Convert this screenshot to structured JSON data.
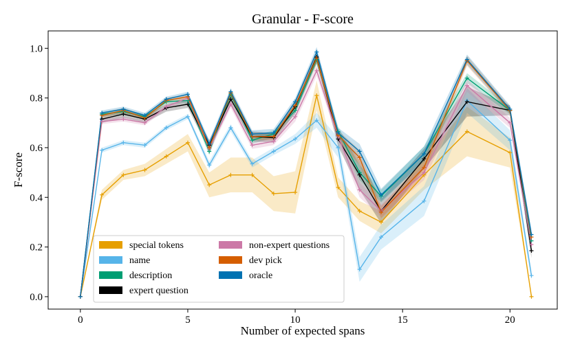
{
  "chart_data": {
    "type": "line",
    "title": "Granular - F-score",
    "xlabel": "Number of expected spans",
    "ylabel": "F-score",
    "xlim": [
      -1.5,
      22.2
    ],
    "ylim": [
      -0.05,
      1.07
    ],
    "xticks": [
      0,
      5,
      10,
      15,
      20
    ],
    "xtick_labels": [
      "0",
      "5",
      "10",
      "15",
      "20"
    ],
    "yticks": [
      0.0,
      0.2,
      0.4,
      0.6,
      0.8,
      1.0
    ],
    "ytick_labels": [
      "0.0",
      "0.2",
      "0.4",
      "0.6",
      "0.8",
      "1.0"
    ],
    "legend_position": "lower-left",
    "x": [
      0,
      1,
      2,
      3,
      4,
      5,
      6,
      7,
      8,
      9,
      10,
      11,
      12,
      13,
      14,
      16,
      18,
      20,
      21
    ],
    "series": [
      {
        "name": "special tokens",
        "color": "#E69F00",
        "values": [
          0.0,
          0.41,
          0.49,
          0.51,
          0.565,
          0.62,
          0.45,
          0.49,
          0.49,
          0.415,
          0.42,
          0.81,
          0.44,
          0.345,
          0.3,
          0.49,
          0.665,
          0.58,
          0.0
        ],
        "band": [
          0.0,
          0.02,
          0.02,
          0.025,
          0.03,
          0.035,
          0.05,
          0.07,
          0.07,
          0.07,
          0.085,
          0.06,
          0.04,
          0.04,
          0.045,
          0.06,
          0.1,
          0.06,
          0.0
        ]
      },
      {
        "name": "name",
        "color": "#56B4E9",
        "values": [
          0.0,
          0.59,
          0.62,
          0.61,
          0.68,
          0.725,
          0.53,
          0.68,
          0.535,
          0.585,
          0.635,
          0.71,
          0.6,
          0.11,
          0.24,
          0.385,
          0.79,
          0.63,
          0.085
        ],
        "band": [
          0.0,
          0.01,
          0.01,
          0.01,
          0.01,
          0.01,
          0.015,
          0.015,
          0.015,
          0.015,
          0.02,
          0.03,
          0.04,
          0.05,
          0.05,
          0.06,
          0.05,
          0.04,
          0.02
        ]
      },
      {
        "name": "description",
        "color": "#009E73",
        "values": [
          0.0,
          0.735,
          0.745,
          0.725,
          0.785,
          0.79,
          0.585,
          0.815,
          0.63,
          0.655,
          0.75,
          0.955,
          0.665,
          0.5,
          0.405,
          0.575,
          0.88,
          0.75,
          0.225
        ],
        "band": [
          0.0,
          0.01,
          0.01,
          0.01,
          0.01,
          0.01,
          0.015,
          0.015,
          0.015,
          0.015,
          0.015,
          0.02,
          0.02,
          0.03,
          0.025,
          0.03,
          0.02,
          0.015,
          0.02
        ]
      },
      {
        "name": "expert question",
        "color": "#000000",
        "values": [
          0.0,
          0.715,
          0.735,
          0.715,
          0.76,
          0.775,
          0.61,
          0.795,
          0.645,
          0.64,
          0.765,
          0.965,
          0.635,
          0.49,
          0.345,
          0.555,
          0.785,
          0.75,
          0.185
        ],
        "band": [
          0.0,
          0.015,
          0.015,
          0.015,
          0.015,
          0.015,
          0.02,
          0.02,
          0.02,
          0.02,
          0.025,
          0.025,
          0.03,
          0.06,
          0.05,
          0.04,
          0.06,
          0.02,
          0.03
        ]
      },
      {
        "name": "non-expert questions",
        "color": "#CC79A7",
        "values": [
          0.0,
          0.705,
          0.715,
          0.7,
          0.765,
          0.8,
          0.595,
          0.775,
          0.61,
          0.625,
          0.725,
          0.91,
          0.645,
          0.43,
          0.345,
          0.5,
          0.85,
          0.7,
          0.21
        ],
        "band": [
          0.0,
          0.01,
          0.01,
          0.01,
          0.01,
          0.01,
          0.015,
          0.015,
          0.015,
          0.015,
          0.02,
          0.02,
          0.02,
          0.03,
          0.025,
          0.03,
          0.025,
          0.02,
          0.02
        ]
      },
      {
        "name": "dev pick",
        "color": "#D55E00",
        "values": [
          0.0,
          0.73,
          0.75,
          0.72,
          0.79,
          0.805,
          0.6,
          0.82,
          0.645,
          0.645,
          0.77,
          0.96,
          0.65,
          0.56,
          0.34,
          0.52,
          0.95,
          0.75,
          0.24
        ],
        "band": [
          0.0,
          0.01,
          0.01,
          0.01,
          0.01,
          0.01,
          0.015,
          0.015,
          0.015,
          0.015,
          0.015,
          0.02,
          0.02,
          0.03,
          0.025,
          0.03,
          0.02,
          0.015,
          0.02
        ]
      },
      {
        "name": "oracle",
        "color": "#0072B2",
        "values": [
          0.0,
          0.74,
          0.755,
          0.73,
          0.795,
          0.815,
          0.615,
          0.825,
          0.655,
          0.66,
          0.785,
          0.985,
          0.66,
          0.585,
          0.41,
          0.575,
          0.955,
          0.755,
          0.25
        ],
        "band": [
          0.0,
          0.01,
          0.01,
          0.01,
          0.01,
          0.01,
          0.015,
          0.015,
          0.015,
          0.015,
          0.015,
          0.02,
          0.02,
          0.03,
          0.025,
          0.03,
          0.02,
          0.015,
          0.02
        ]
      }
    ]
  }
}
